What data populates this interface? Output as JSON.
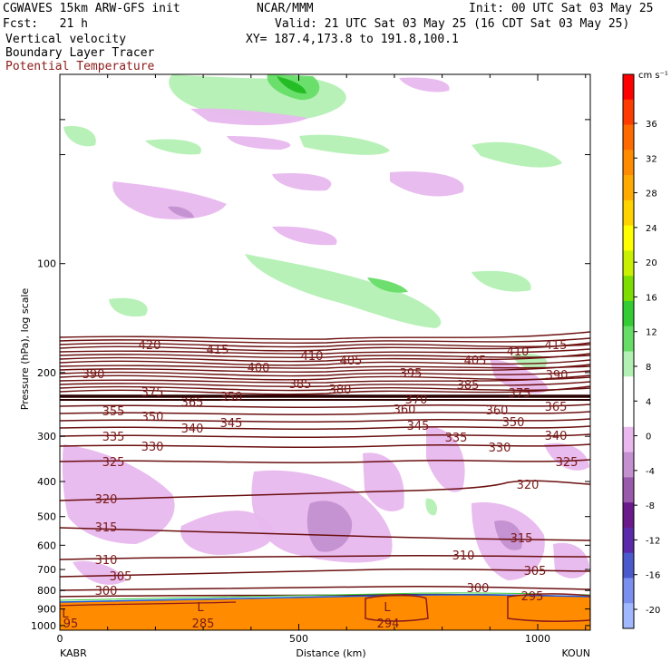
{
  "header": {
    "model": "CGWAVES 15km ARW-GFS init",
    "center": "NCAR/MMM",
    "init": "Init: 00 UTC Sat 03 May 25",
    "fcst": "Fcst:   21 h",
    "valid": "Valid: 21 UTC Sat 03 May 25 (16 CDT Sat 03 May 25)",
    "field1": "Vertical velocity",
    "field2": "Boundary Layer Tracer",
    "field3": "Potential Temperature",
    "xy": "XY= 187.4,173.8 to 191.8,100.1"
  },
  "colors": {
    "theta_line": "#6b0f0f",
    "theta_label": "#7a1a1a",
    "terrain": "#ff8c00",
    "up_light": "#b3f0b3",
    "up_mid": "#66dd66",
    "up_dark": "#22bb22",
    "down_light": "#e8b8ee",
    "down_mid": "#c490d0",
    "down_dark": "#9a5aac"
  },
  "chart_data": {
    "type": "cross-section",
    "xlabel": "Distance (km)",
    "ylabel": "Pressure (hPa), log scale",
    "x_ticks": [
      0,
      500,
      1000
    ],
    "y_ticks": [
      100,
      200,
      300,
      400,
      500,
      600,
      700,
      800,
      900,
      1000
    ],
    "xlim": [
      0,
      1110
    ],
    "ylim_hpa": [
      1030,
      30
    ],
    "y_scale": "log",
    "endpoint_left": "KABR",
    "endpoint_right": "KOUN",
    "colorbar": {
      "unit": "cm s⁻¹",
      "labels": [
        36,
        32,
        28,
        24,
        20,
        16,
        12,
        8,
        4,
        0,
        -4,
        -8,
        -12,
        -16,
        -20
      ],
      "colors": [
        "#ff0000",
        "#ff3c00",
        "#ff6a00",
        "#ff8c00",
        "#ffaa00",
        "#ffd200",
        "#ffff00",
        "#c8f000",
        "#7cde00",
        "#33cc33",
        "#66dd66",
        "#b3f0b3",
        "#ffffff",
        "#ffffff",
        "#e8b8ee",
        "#c490d0",
        "#9a5aac",
        "#6a1a8a",
        "#5a2aaa",
        "#4a5acc",
        "#7a90ee",
        "#a0b8ff"
      ]
    },
    "theta_labels": [
      {
        "v": "420",
        "x": 165,
        "y": 380
      },
      {
        "v": "415",
        "x": 240,
        "y": 385
      },
      {
        "v": "410",
        "x": 344,
        "y": 392
      },
      {
        "v": "405",
        "x": 387,
        "y": 397
      },
      {
        "v": "400",
        "x": 285,
        "y": 405
      },
      {
        "v": "395",
        "x": 453,
        "y": 411
      },
      {
        "v": "385",
        "x": 331,
        "y": 423
      },
      {
        "v": "380",
        "x": 375,
        "y": 429
      },
      {
        "v": "390",
        "x": 103,
        "y": 412
      },
      {
        "v": "375",
        "x": 168,
        "y": 432
      },
      {
        "v": "365",
        "x": 212,
        "y": 443
      },
      {
        "v": "350",
        "x": 255,
        "y": 437
      },
      {
        "v": "370",
        "x": 459,
        "y": 440
      },
      {
        "v": "360",
        "x": 446,
        "y": 451
      },
      {
        "v": "355",
        "x": 125,
        "y": 453
      },
      {
        "v": "350",
        "x": 168,
        "y": 459
      },
      {
        "v": "345",
        "x": 255,
        "y": 466
      },
      {
        "v": "340",
        "x": 212,
        "y": 472
      },
      {
        "v": "345",
        "x": 461,
        "y": 469
      },
      {
        "v": "335",
        "x": 125,
        "y": 481
      },
      {
        "v": "330",
        "x": 168,
        "y": 492
      },
      {
        "v": "335",
        "x": 503,
        "y": 482
      },
      {
        "v": "330",
        "x": 551,
        "y": 493
      },
      {
        "v": "325",
        "x": 125,
        "y": 509
      },
      {
        "v": "325",
        "x": 625,
        "y": 509
      },
      {
        "v": "410",
        "x": 571,
        "y": 387
      },
      {
        "v": "415",
        "x": 613,
        "y": 380
      },
      {
        "v": "405",
        "x": 524,
        "y": 397
      },
      {
        "v": "390",
        "x": 614,
        "y": 413
      },
      {
        "v": "385",
        "x": 516,
        "y": 424
      },
      {
        "v": "375",
        "x": 573,
        "y": 433
      },
      {
        "v": "365",
        "x": 613,
        "y": 448
      },
      {
        "v": "360",
        "x": 548,
        "y": 452
      },
      {
        "v": "350",
        "x": 566,
        "y": 465
      },
      {
        "v": "340",
        "x": 613,
        "y": 480
      },
      {
        "v": "320",
        "x": 117,
        "y": 550
      },
      {
        "v": "320",
        "x": 582,
        "y": 534
      },
      {
        "v": "315",
        "x": 117,
        "y": 581
      },
      {
        "v": "315",
        "x": 575,
        "y": 593
      },
      {
        "v": "310",
        "x": 117,
        "y": 617
      },
      {
        "v": "310",
        "x": 511,
        "y": 612
      },
      {
        "v": "305",
        "x": 133,
        "y": 635
      },
      {
        "v": "305",
        "x": 590,
        "y": 629
      },
      {
        "v": "300",
        "x": 117,
        "y": 651
      },
      {
        "v": "300",
        "x": 527,
        "y": 648
      },
      {
        "v": "295",
        "x": 587,
        "y": 657
      }
    ],
    "terrain_labels": [
      {
        "v": "L",
        "x": 221,
        "y": 669
      },
      {
        "v": "L",
        "x": 427,
        "y": 669
      },
      {
        "v": "L",
        "x": 72,
        "y": 676
      },
      {
        "v": "285",
        "x": 224,
        "y": 687
      },
      {
        "v": "294",
        "x": 428,
        "y": 687
      },
      {
        "v": "95",
        "x": 78,
        "y": 687
      }
    ]
  }
}
